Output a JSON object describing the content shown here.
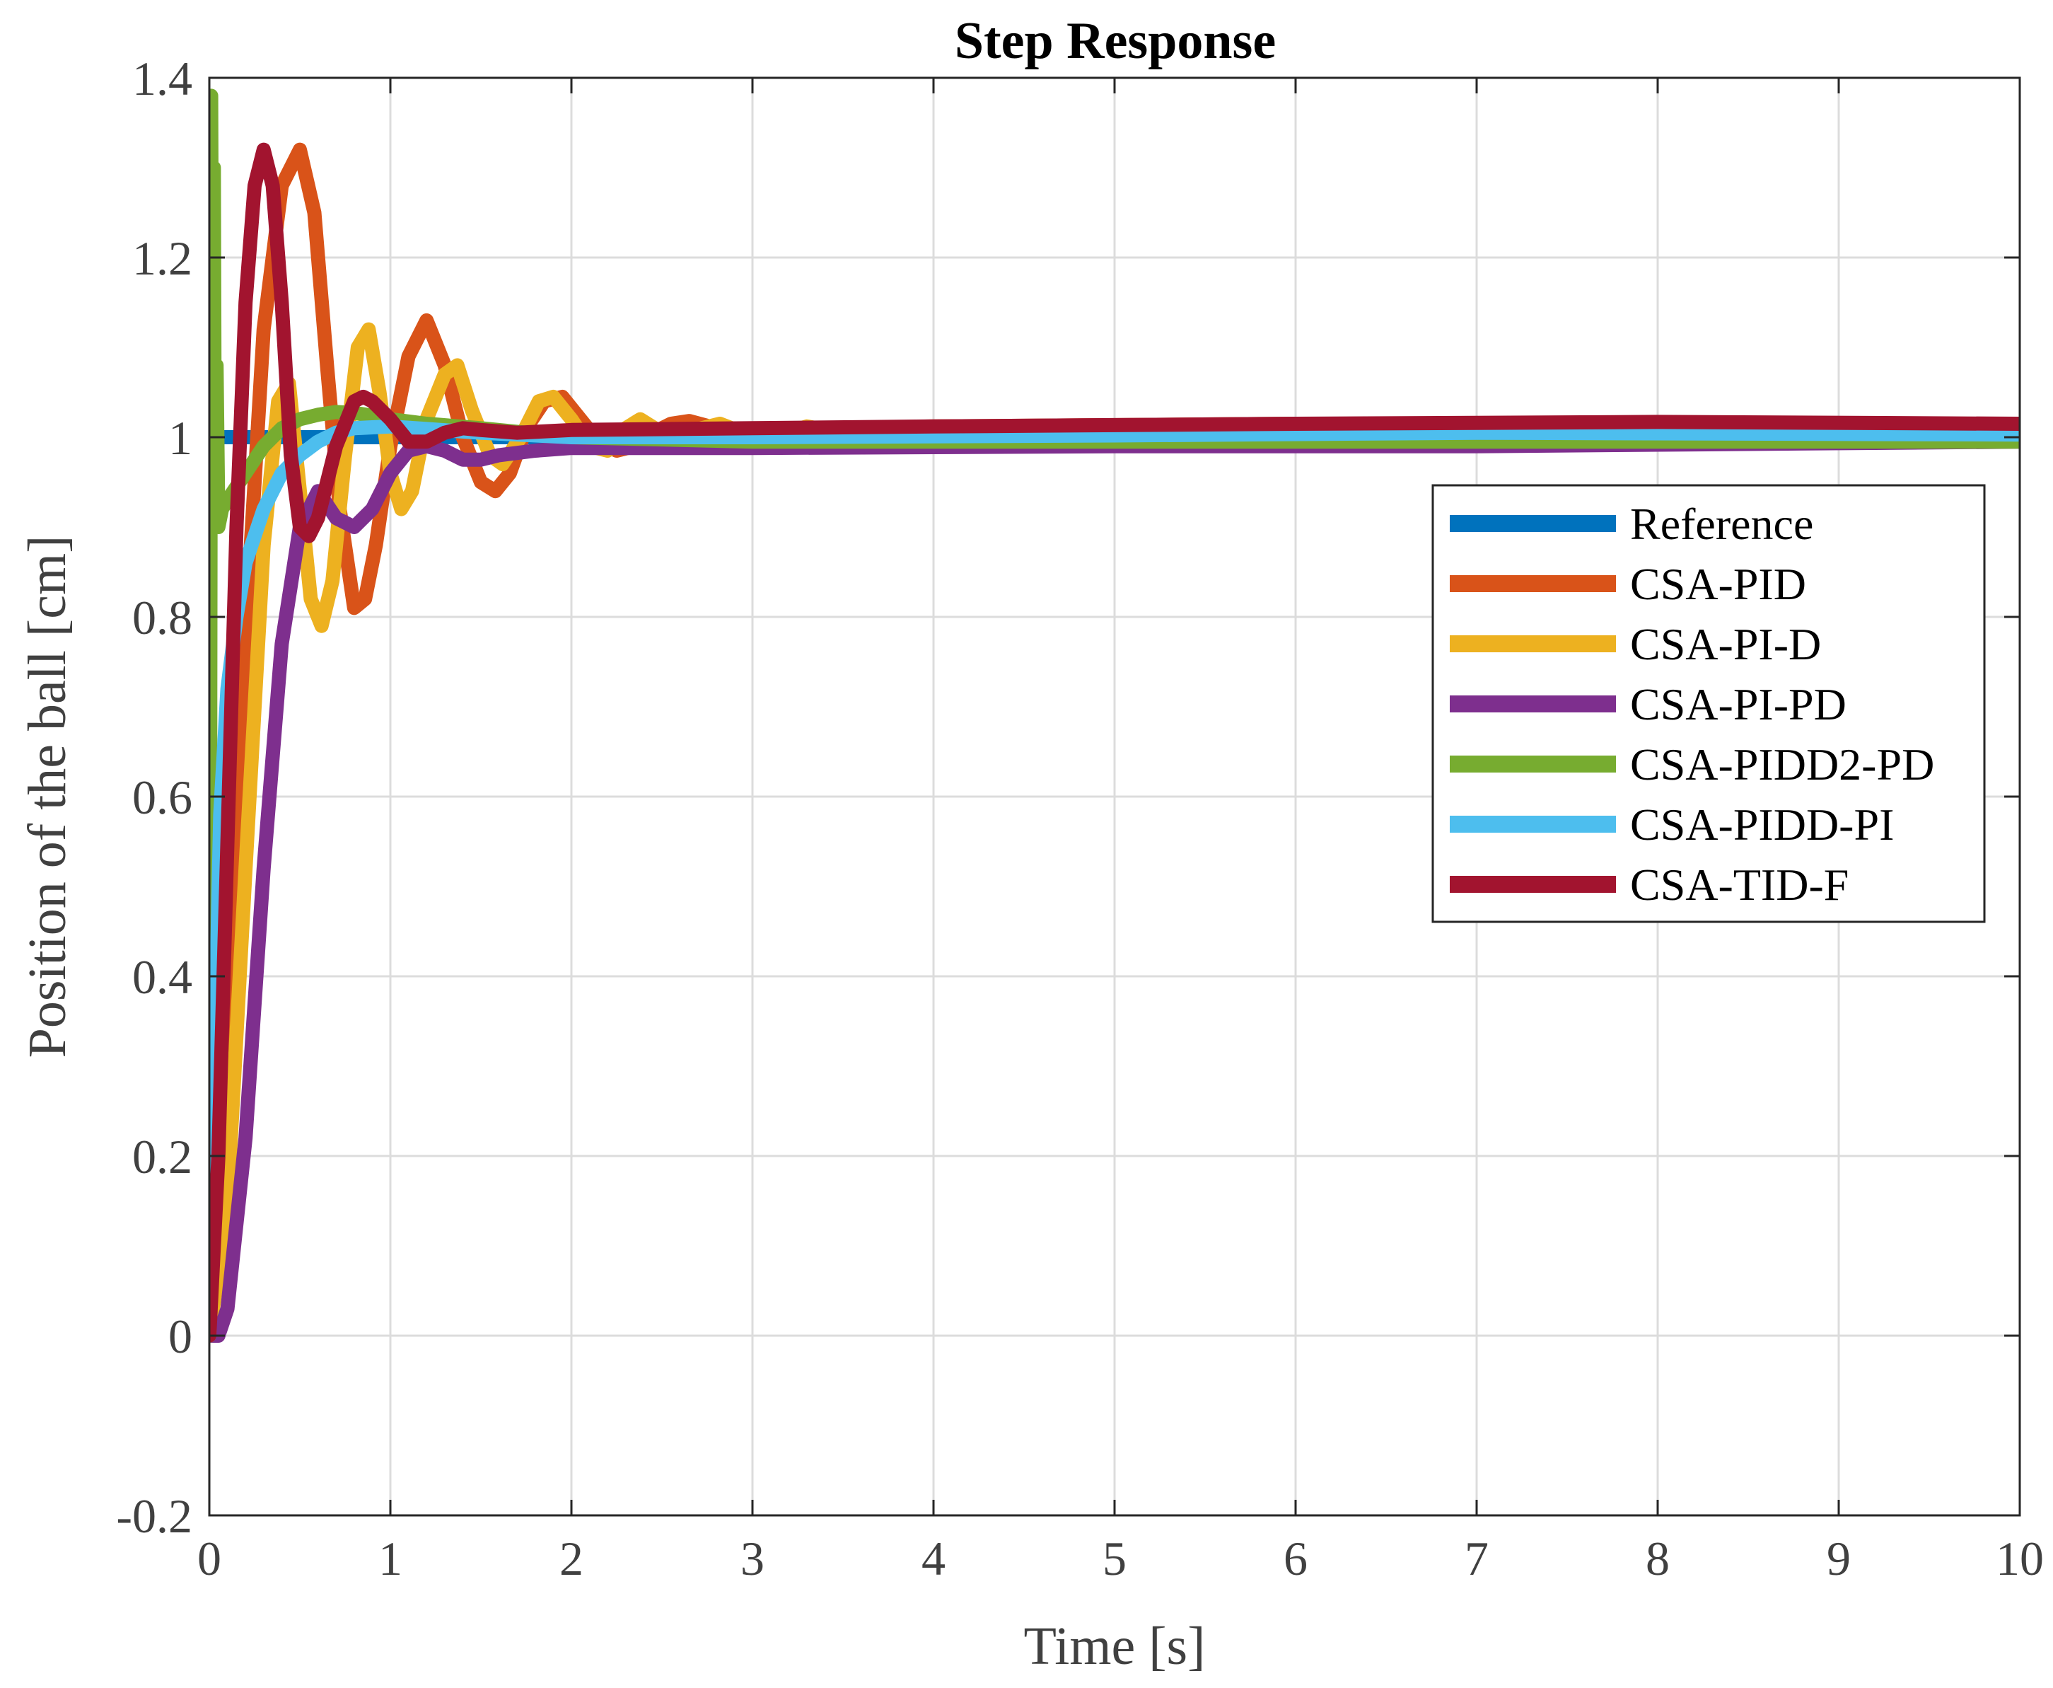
{
  "chart_data": {
    "type": "line",
    "title": "Step Response",
    "xlabel": "Time [s]",
    "ylabel": "Position of the ball [cm]",
    "xlim": [
      0,
      10
    ],
    "ylim": [
      -0.2,
      1.4
    ],
    "xticks": [
      0,
      1,
      2,
      3,
      4,
      5,
      6,
      7,
      8,
      9,
      10
    ],
    "xtick_labels": [
      "0",
      "1",
      "2",
      "3",
      "4",
      "5",
      "6",
      "7",
      "8",
      "9",
      "10"
    ],
    "yticks": [
      -0.2,
      0,
      0.2,
      0.4,
      0.6,
      0.8,
      1,
      1.2,
      1.4
    ],
    "ytick_labels": [
      "-0.2",
      "0",
      "0.2",
      "0.4",
      "0.6",
      "0.8",
      "1",
      "1.2",
      "1.4"
    ],
    "grid": true,
    "legend_position": "right",
    "series": [
      {
        "name": "Reference",
        "color": "#0072BD",
        "points": [
          [
            0,
            1
          ],
          [
            10,
            1
          ]
        ]
      },
      {
        "name": "CSA-PID",
        "color": "#D95319",
        "points": [
          [
            0,
            0
          ],
          [
            0.1,
            0.35
          ],
          [
            0.2,
            0.78
          ],
          [
            0.3,
            1.12
          ],
          [
            0.4,
            1.28
          ],
          [
            0.5,
            1.32
          ],
          [
            0.58,
            1.25
          ],
          [
            0.65,
            1.08
          ],
          [
            0.72,
            0.92
          ],
          [
            0.8,
            0.81
          ],
          [
            0.86,
            0.82
          ],
          [
            0.92,
            0.88
          ],
          [
            1.0,
            0.99
          ],
          [
            1.1,
            1.09
          ],
          [
            1.2,
            1.13
          ],
          [
            1.3,
            1.08
          ],
          [
            1.4,
            1.0
          ],
          [
            1.5,
            0.95
          ],
          [
            1.58,
            0.94
          ],
          [
            1.66,
            0.96
          ],
          [
            1.75,
            1.01
          ],
          [
            1.85,
            1.04
          ],
          [
            1.95,
            1.045
          ],
          [
            2.05,
            1.02
          ],
          [
            2.15,
            0.995
          ],
          [
            2.25,
            0.985
          ],
          [
            2.35,
            0.99
          ],
          [
            2.45,
            1.005
          ],
          [
            2.55,
            1.015
          ],
          [
            2.65,
            1.018
          ],
          [
            2.8,
            1.01
          ],
          [
            3.0,
            1.005
          ],
          [
            3.5,
            1.01
          ],
          [
            4.0,
            1.012
          ],
          [
            6.0,
            1.015
          ],
          [
            8.0,
            1.015
          ],
          [
            10.0,
            1.012
          ]
        ]
      },
      {
        "name": "CSA-PI-D",
        "color": "#EDB120",
        "points": [
          [
            0,
            0
          ],
          [
            0.1,
            0.15
          ],
          [
            0.2,
            0.52
          ],
          [
            0.3,
            0.88
          ],
          [
            0.38,
            1.04
          ],
          [
            0.44,
            1.06
          ],
          [
            0.5,
            0.94
          ],
          [
            0.56,
            0.82
          ],
          [
            0.62,
            0.79
          ],
          [
            0.68,
            0.84
          ],
          [
            0.75,
            0.98
          ],
          [
            0.82,
            1.1
          ],
          [
            0.88,
            1.12
          ],
          [
            0.94,
            1.05
          ],
          [
            1.0,
            0.96
          ],
          [
            1.06,
            0.92
          ],
          [
            1.12,
            0.94
          ],
          [
            1.2,
            1.02
          ],
          [
            1.3,
            1.07
          ],
          [
            1.37,
            1.08
          ],
          [
            1.45,
            1.03
          ],
          [
            1.55,
            0.98
          ],
          [
            1.62,
            0.97
          ],
          [
            1.72,
            1.0
          ],
          [
            1.82,
            1.04
          ],
          [
            1.9,
            1.045
          ],
          [
            2.0,
            1.02
          ],
          [
            2.1,
            0.99
          ],
          [
            2.2,
            0.985
          ],
          [
            2.3,
            1.01
          ],
          [
            2.38,
            1.02
          ],
          [
            2.5,
            1.005
          ],
          [
            2.6,
            0.995
          ],
          [
            2.72,
            1.01
          ],
          [
            2.82,
            1.015
          ],
          [
            2.95,
            1.005
          ],
          [
            3.1,
            1.0
          ],
          [
            3.3,
            1.012
          ],
          [
            3.5,
            1.005
          ],
          [
            4.0,
            1.01
          ],
          [
            6.0,
            1.012
          ],
          [
            10.0,
            1.01
          ]
        ]
      },
      {
        "name": "CSA-PI-PD",
        "color": "#7E2F8E",
        "points": [
          [
            0,
            0
          ],
          [
            0.05,
            0.0
          ],
          [
            0.1,
            0.03
          ],
          [
            0.2,
            0.22
          ],
          [
            0.3,
            0.52
          ],
          [
            0.4,
            0.77
          ],
          [
            0.5,
            0.9
          ],
          [
            0.6,
            0.94
          ],
          [
            0.7,
            0.91
          ],
          [
            0.8,
            0.9
          ],
          [
            0.9,
            0.92
          ],
          [
            1.0,
            0.96
          ],
          [
            1.1,
            0.985
          ],
          [
            1.2,
            0.99
          ],
          [
            1.3,
            0.985
          ],
          [
            1.4,
            0.975
          ],
          [
            1.5,
            0.975
          ],
          [
            1.6,
            0.98
          ],
          [
            1.8,
            0.985
          ],
          [
            2.0,
            0.988
          ],
          [
            3.0,
            0.988
          ],
          [
            5.0,
            0.99
          ],
          [
            7.0,
            0.99
          ],
          [
            10.0,
            0.995
          ]
        ]
      },
      {
        "name": "CSA-PIDD2-PD",
        "color": "#77AC30",
        "points": [
          [
            0,
            0
          ],
          [
            0.005,
            0.7
          ],
          [
            0.01,
            1.38
          ],
          [
            0.015,
            1.1
          ],
          [
            0.02,
            0.9
          ],
          [
            0.025,
            1.3
          ],
          [
            0.03,
            0.95
          ],
          [
            0.04,
            1.08
          ],
          [
            0.05,
            0.9
          ],
          [
            0.07,
            0.92
          ],
          [
            0.1,
            0.93
          ],
          [
            0.2,
            0.96
          ],
          [
            0.3,
            0.99
          ],
          [
            0.4,
            1.01
          ],
          [
            0.5,
            1.02
          ],
          [
            0.6,
            1.025
          ],
          [
            0.7,
            1.028
          ],
          [
            0.8,
            1.027
          ],
          [
            0.9,
            1.024
          ],
          [
            1.0,
            1.02
          ],
          [
            1.2,
            1.015
          ],
          [
            1.5,
            1.01
          ],
          [
            2.0,
            1.0
          ],
          [
            3.0,
            0.995
          ],
          [
            5.0,
            0.995
          ],
          [
            10.0,
            0.995
          ]
        ]
      },
      {
        "name": "CSA-PIDD-PI",
        "color": "#4DBEEE",
        "points": [
          [
            0,
            0
          ],
          [
            0.03,
            0.3
          ],
          [
            0.06,
            0.58
          ],
          [
            0.1,
            0.72
          ],
          [
            0.15,
            0.8
          ],
          [
            0.2,
            0.86
          ],
          [
            0.3,
            0.92
          ],
          [
            0.4,
            0.96
          ],
          [
            0.5,
            0.98
          ],
          [
            0.6,
            0.995
          ],
          [
            0.7,
            1.005
          ],
          [
            0.8,
            1.01
          ],
          [
            1.0,
            1.012
          ],
          [
            1.5,
            1.005
          ],
          [
            2.0,
            1.0
          ],
          [
            3.0,
            1.0
          ],
          [
            5.0,
            1.002
          ],
          [
            7.0,
            1.005
          ],
          [
            10.0,
            1.003
          ]
        ]
      },
      {
        "name": "CSA-TID-F",
        "color": "#A2142F",
        "points": [
          [
            0,
            0
          ],
          [
            0.05,
            0.2
          ],
          [
            0.1,
            0.55
          ],
          [
            0.15,
            0.9
          ],
          [
            0.2,
            1.15
          ],
          [
            0.25,
            1.28
          ],
          [
            0.3,
            1.32
          ],
          [
            0.35,
            1.28
          ],
          [
            0.4,
            1.15
          ],
          [
            0.45,
            0.98
          ],
          [
            0.5,
            0.9
          ],
          [
            0.55,
            0.89
          ],
          [
            0.6,
            0.91
          ],
          [
            0.7,
            0.99
          ],
          [
            0.8,
            1.04
          ],
          [
            0.85,
            1.045
          ],
          [
            0.9,
            1.04
          ],
          [
            1.0,
            1.02
          ],
          [
            1.1,
            0.995
          ],
          [
            1.2,
            0.995
          ],
          [
            1.3,
            1.005
          ],
          [
            1.4,
            1.01
          ],
          [
            1.5,
            1.008
          ],
          [
            1.7,
            1.005
          ],
          [
            2.0,
            1.008
          ],
          [
            3.0,
            1.01
          ],
          [
            4.0,
            1.012
          ],
          [
            6.0,
            1.015
          ],
          [
            8.0,
            1.017
          ],
          [
            10.0,
            1.015
          ]
        ]
      }
    ]
  }
}
